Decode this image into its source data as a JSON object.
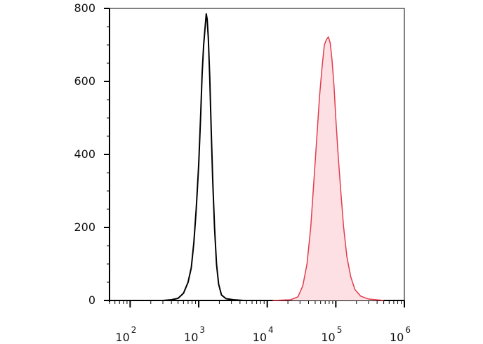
{
  "chart_data": {
    "type": "area",
    "title": "",
    "xlabel": "",
    "ylabel": "",
    "x_scale": "log",
    "xlim": [
      50,
      1000000
    ],
    "ylim": [
      0,
      800
    ],
    "y_ticks": [
      0,
      200,
      400,
      600,
      800
    ],
    "y_tick_labels": [
      "0",
      "200",
      "400",
      "600",
      "800"
    ],
    "x_ticks": [
      {
        "base": "10",
        "exp": "2",
        "value": 100
      },
      {
        "base": "10",
        "exp": "3",
        "value": 1000
      },
      {
        "base": "10",
        "exp": "4",
        "value": 10000
      },
      {
        "base": "10",
        "exp": "5",
        "value": 100000
      },
      {
        "base": "10",
        "exp": "6",
        "value": 1000000
      }
    ],
    "grid": false,
    "legend": "none",
    "series": [
      {
        "color": "#000000",
        "filled": false,
        "points": [
          [
            300,
            0
          ],
          [
            400,
            2
          ],
          [
            500,
            6
          ],
          [
            600,
            20
          ],
          [
            700,
            50
          ],
          [
            780,
            90
          ],
          [
            850,
            160
          ],
          [
            920,
            250
          ],
          [
            1000,
            370
          ],
          [
            1070,
            510
          ],
          [
            1120,
            620
          ],
          [
            1180,
            700
          ],
          [
            1230,
            740
          ],
          [
            1290,
            785
          ],
          [
            1330,
            770
          ],
          [
            1380,
            720
          ],
          [
            1450,
            610
          ],
          [
            1520,
            470
          ],
          [
            1600,
            330
          ],
          [
            1700,
            200
          ],
          [
            1820,
            100
          ],
          [
            1950,
            45
          ],
          [
            2150,
            15
          ],
          [
            2500,
            5
          ],
          [
            3200,
            2
          ],
          [
            4500,
            0
          ]
        ]
      },
      {
        "color": "#e23c4e",
        "fill": "#fde0e3",
        "filled": true,
        "points": [
          [
            12000,
            0
          ],
          [
            22000,
            2
          ],
          [
            28000,
            10
          ],
          [
            33000,
            40
          ],
          [
            38000,
            100
          ],
          [
            43000,
            200
          ],
          [
            48000,
            330
          ],
          [
            53000,
            450
          ],
          [
            58000,
            560
          ],
          [
            63000,
            640
          ],
          [
            68000,
            700
          ],
          [
            73000,
            715
          ],
          [
            78000,
            722
          ],
          [
            83000,
            705
          ],
          [
            88000,
            660
          ],
          [
            94000,
            590
          ],
          [
            100000,
            500
          ],
          [
            108000,
            400
          ],
          [
            118000,
            300
          ],
          [
            130000,
            200
          ],
          [
            145000,
            120
          ],
          [
            165000,
            65
          ],
          [
            190000,
            30
          ],
          [
            230000,
            12
          ],
          [
            300000,
            4
          ],
          [
            500000,
            0
          ]
        ]
      }
    ]
  }
}
